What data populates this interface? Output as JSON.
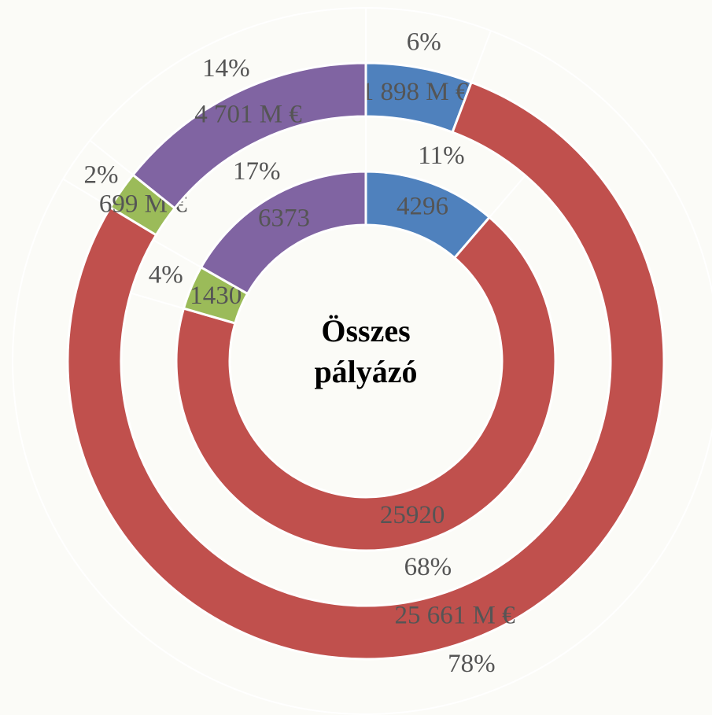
{
  "chart_data": {
    "type": "donut",
    "center_label": "Összes pályázó",
    "colors": [
      "#4f81bd",
      "#c0504d",
      "#9bbb59",
      "#8064a2"
    ],
    "rings": [
      {
        "values": [
          4296,
          25920,
          1430,
          6373
        ],
        "percent_labels": [
          "11%",
          "68%",
          "4%",
          "17%"
        ]
      },
      {
        "values": [
          1898,
          25661,
          699,
          4701
        ],
        "value_labels": [
          "1 898 M €",
          "25 661 M €",
          "699 M €",
          "4 701 M €"
        ],
        "percent_labels": [
          "6%",
          "78%",
          "2%",
          "14%"
        ]
      }
    ]
  }
}
